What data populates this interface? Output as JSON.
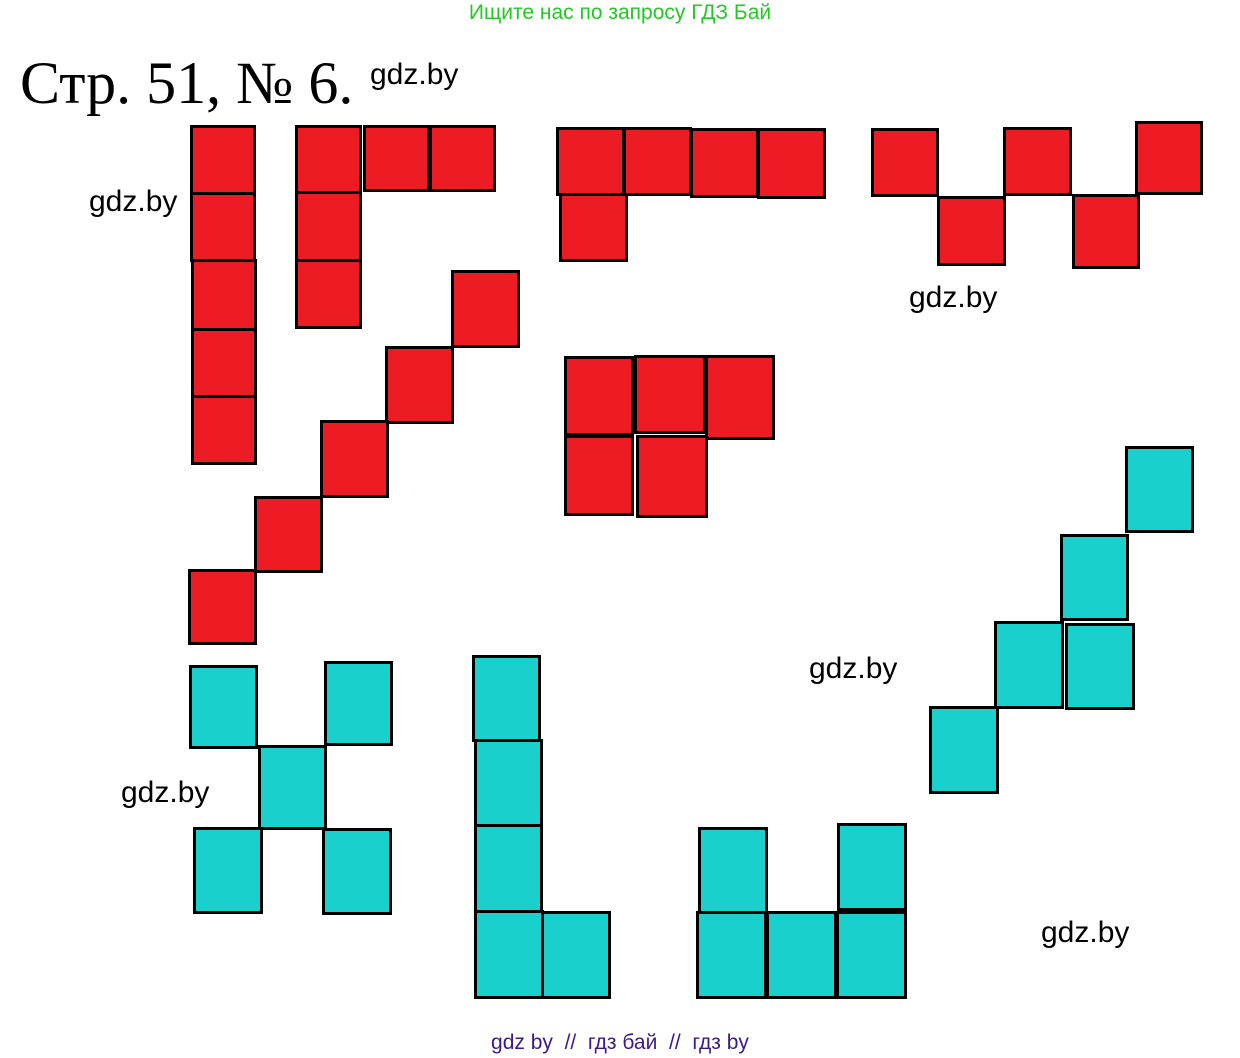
{
  "banner": "Ищите нас по запросу ГДЗ Бай",
  "title": "Стр. 51, № 6.",
  "watermark": "gdz.by",
  "footer": "gdz by  //  гдз бай  //  гдз by",
  "colors": {
    "red_fill": "#ed1c24",
    "cyan_fill": "#19d0cc",
    "outline": "#000000",
    "banner_text": "#22c924",
    "footer_text": "#3d1a8a"
  },
  "figures": [
    {
      "id": "red-vertical-five",
      "color": "red",
      "cells": 5
    },
    {
      "id": "red-corner-five",
      "color": "red",
      "cells": 5
    },
    {
      "id": "red-long-l-five",
      "color": "red",
      "cells": 5
    },
    {
      "id": "red-zigzag-five",
      "color": "red",
      "cells": 5
    },
    {
      "id": "red-diagonal-five",
      "color": "red",
      "cells": 5
    },
    {
      "id": "red-p-five",
      "color": "red",
      "cells": 5
    },
    {
      "id": "cyan-x-five",
      "color": "cyan",
      "cells": 5
    },
    {
      "id": "cyan-l-five",
      "color": "cyan",
      "cells": 5
    },
    {
      "id": "cyan-u-five",
      "color": "cyan",
      "cells": 5
    },
    {
      "id": "cyan-stairs-five",
      "color": "cyan",
      "cells": 5
    }
  ]
}
